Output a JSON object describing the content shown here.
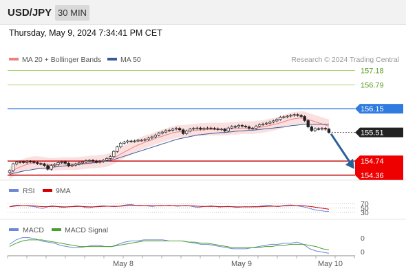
{
  "header": {
    "pair": "USD/JPY",
    "timeframe": "30 MIN",
    "datetime": "Thursday, May 9, 2024 7:34:41 PM CET",
    "research": "Research © 2024 Trading Central"
  },
  "colors": {
    "price_line": "#000000",
    "resistance": "#5b9bd5",
    "support": "#cc0000",
    "target": "#6aa82a",
    "ma20": "#f08080",
    "ma50": "#3b5998",
    "arrow": "#2a6099",
    "rsi": "#6b87d6",
    "rsi_ma": "#d00000",
    "macd": "#6b87d6",
    "macd_signal": "#4aa02c"
  },
  "chart_data": [
    {
      "type": "candlestick",
      "legend": [
        {
          "name": "MA 20 + Bollinger Bands",
          "color": "#f08080"
        },
        {
          "name": "MA 50",
          "color": "#3b5998"
        }
      ],
      "x_ticks": [
        "May 8",
        "May 9",
        "May 10"
      ],
      "y_range": [
        154.3,
        157.3
      ],
      "levels": [
        {
          "label": "157.18",
          "value": 157.18,
          "kind": "target"
        },
        {
          "label": "156.79",
          "value": 156.79,
          "kind": "target"
        },
        {
          "label": "156.15",
          "value": 156.15,
          "kind": "resistance"
        },
        {
          "label": "155.51",
          "value": 155.51,
          "kind": "last"
        },
        {
          "label": "154.74",
          "value": 154.74,
          "kind": "support"
        },
        {
          "label": "154.36",
          "value": 154.36,
          "kind": "support"
        }
      ],
      "close": [
        154.48,
        154.66,
        154.71,
        154.72,
        154.7,
        154.73,
        154.72,
        154.7,
        154.67,
        154.66,
        154.62,
        154.52,
        154.62,
        154.65,
        154.7,
        154.72,
        154.68,
        154.61,
        154.63,
        154.66,
        154.69,
        154.72,
        154.75,
        154.76,
        154.74,
        154.71,
        154.73,
        154.76,
        154.81,
        154.86,
        155.0,
        155.12,
        155.22,
        155.25,
        155.28,
        155.27,
        155.28,
        155.3,
        155.3,
        155.32,
        155.36,
        155.39,
        155.44,
        155.49,
        155.52,
        155.56,
        155.57,
        155.6,
        155.62,
        155.58,
        155.48,
        155.55,
        155.6,
        155.62,
        155.63,
        155.6,
        155.62,
        155.63,
        155.62,
        155.61,
        155.59,
        155.6,
        155.55,
        155.63,
        155.67,
        155.66,
        155.7,
        155.68,
        155.66,
        155.62,
        155.62,
        155.68,
        155.72,
        155.74,
        155.76,
        155.79,
        155.82,
        155.86,
        155.92,
        155.93,
        155.95,
        155.97,
        155.99,
        155.97,
        155.94,
        155.83,
        155.66,
        155.56,
        155.61,
        155.6,
        155.62,
        155.6,
        155.51
      ],
      "ma20": [
        154.4,
        154.48,
        154.54,
        154.58,
        154.62,
        154.65,
        154.67,
        154.69,
        154.69,
        154.68,
        154.67,
        154.65,
        154.64,
        154.64,
        154.65,
        154.66,
        154.66,
        154.66,
        154.66,
        154.66,
        154.67,
        154.68,
        154.69,
        154.7,
        154.71,
        154.71,
        154.72,
        154.73,
        154.75,
        154.78,
        154.82,
        154.87,
        154.93,
        154.98,
        155.03,
        155.08,
        155.13,
        155.17,
        155.21,
        155.25,
        155.28,
        155.31,
        155.35,
        155.38,
        155.41,
        155.44,
        155.47,
        155.5,
        155.52,
        155.53,
        155.53,
        155.54,
        155.55,
        155.56,
        155.57,
        155.58,
        155.58,
        155.59,
        155.59,
        155.59,
        155.59,
        155.59,
        155.59,
        155.6,
        155.61,
        155.61,
        155.62,
        155.63,
        155.63,
        155.63,
        155.63,
        155.64,
        155.65,
        155.66,
        155.68,
        155.7,
        155.72,
        155.74,
        155.77,
        155.8,
        155.83,
        155.86,
        155.88,
        155.89,
        155.9,
        155.89,
        155.86,
        155.83,
        155.8,
        155.77,
        155.74,
        155.71,
        155.68
      ],
      "ma50": [
        154.38,
        154.41,
        154.43,
        154.45,
        154.47,
        154.49,
        154.5,
        154.52,
        154.53,
        154.54,
        154.55,
        154.56,
        154.57,
        154.58,
        154.59,
        154.6,
        154.61,
        154.62,
        154.63,
        154.64,
        154.65,
        154.66,
        154.67,
        154.68,
        154.69,
        154.7,
        154.71,
        154.72,
        154.74,
        154.76,
        154.78,
        154.81,
        154.84,
        154.87,
        154.9,
        154.93,
        154.96,
        154.99,
        155.02,
        155.05,
        155.08,
        155.11,
        155.14,
        155.17,
        155.2,
        155.23,
        155.26,
        155.29,
        155.32,
        155.34,
        155.36,
        155.38,
        155.4,
        155.42,
        155.44,
        155.45,
        155.46,
        155.47,
        155.48,
        155.49,
        155.5,
        155.51,
        155.51,
        155.52,
        155.53,
        155.54,
        155.55,
        155.55,
        155.56,
        155.57,
        155.57,
        155.58,
        155.59,
        155.6,
        155.61,
        155.62,
        155.63,
        155.64,
        155.65,
        155.66,
        155.67,
        155.69,
        155.7,
        155.71,
        155.72,
        155.73,
        155.73,
        155.73,
        155.73,
        155.73,
        155.73,
        155.73,
        155.73
      ]
    },
    {
      "type": "line",
      "title": "RSI",
      "legend": [
        {
          "name": "RSI",
          "color": "#6b87d6"
        },
        {
          "name": "9MA",
          "color": "#d00000"
        }
      ],
      "y_ticks": [
        "70",
        "50",
        "30"
      ],
      "y_range": [
        20,
        80
      ],
      "series": [
        {
          "name": "RSI",
          "values": [
            55,
            62,
            63,
            61,
            60,
            58,
            56,
            50,
            48,
            55,
            60,
            58,
            54,
            52,
            56,
            57,
            60,
            58,
            52,
            50,
            55,
            58,
            60,
            59,
            57,
            56,
            58,
            62,
            65,
            66,
            62,
            60,
            61,
            59,
            57,
            60,
            62,
            61,
            63,
            60,
            58,
            60,
            62,
            59,
            55,
            52,
            56,
            58,
            60,
            57,
            54,
            56,
            58,
            55,
            52,
            54,
            56,
            55,
            57,
            56,
            60,
            63,
            62,
            58,
            56,
            60,
            63,
            64,
            62,
            58,
            55,
            50,
            45,
            40,
            38,
            35,
            34
          ]
        },
        {
          "name": "9MA",
          "values": [
            56,
            58,
            60,
            61,
            61,
            60,
            59,
            57,
            56,
            56,
            57,
            57,
            56,
            55,
            55,
            56,
            57,
            57,
            56,
            55,
            55,
            56,
            57,
            58,
            58,
            58,
            58,
            59,
            61,
            62,
            62,
            62,
            61,
            61,
            60,
            60,
            60,
            61,
            61,
            61,
            60,
            60,
            60,
            60,
            59,
            58,
            57,
            57,
            57,
            57,
            56,
            56,
            56,
            56,
            55,
            55,
            55,
            55,
            55,
            55,
            56,
            57,
            58,
            58,
            58,
            59,
            60,
            61,
            61,
            61,
            60,
            58,
            56,
            53,
            50,
            47,
            44
          ]
        }
      ]
    },
    {
      "type": "line",
      "title": "MACD",
      "legend": [
        {
          "name": "MACD",
          "color": "#6b87d6"
        },
        {
          "name": "MACD Signal",
          "color": "#4aa02c"
        }
      ],
      "y_ticks": [
        "0",
        "0"
      ],
      "series": [
        {
          "name": "MACD",
          "values": [
            0.02,
            0.06,
            0.08,
            0.08,
            0.07,
            0.05,
            0.04,
            0.03,
            0.01,
            0.0,
            -0.01,
            -0.01,
            0.0,
            0.01,
            0.01,
            0.0,
            0.0,
            0.02,
            0.04,
            0.05,
            0.05,
            0.06,
            0.06,
            0.06,
            0.06,
            0.05,
            0.05,
            0.05,
            0.04,
            0.03,
            0.02,
            0.02,
            0.01,
            0.0,
            -0.01,
            -0.02,
            -0.02,
            -0.02,
            -0.01,
            0.0,
            0.01,
            0.02,
            0.02,
            0.03,
            0.03,
            0.04,
            0.02,
            -0.02,
            -0.04,
            -0.05,
            -0.06
          ]
        },
        {
          "name": "MACD Signal",
          "values": [
            0.0,
            0.03,
            0.05,
            0.06,
            0.06,
            0.06,
            0.05,
            0.04,
            0.03,
            0.02,
            0.01,
            0.0,
            0.0,
            0.0,
            0.0,
            0.0,
            0.0,
            0.01,
            0.02,
            0.03,
            0.04,
            0.05,
            0.05,
            0.05,
            0.05,
            0.05,
            0.05,
            0.05,
            0.04,
            0.04,
            0.03,
            0.03,
            0.02,
            0.01,
            0.0,
            -0.01,
            -0.01,
            -0.01,
            -0.01,
            -0.01,
            0.0,
            0.0,
            0.01,
            0.01,
            0.02,
            0.02,
            0.02,
            0.01,
            0.0,
            -0.02,
            -0.03
          ]
        }
      ]
    }
  ]
}
